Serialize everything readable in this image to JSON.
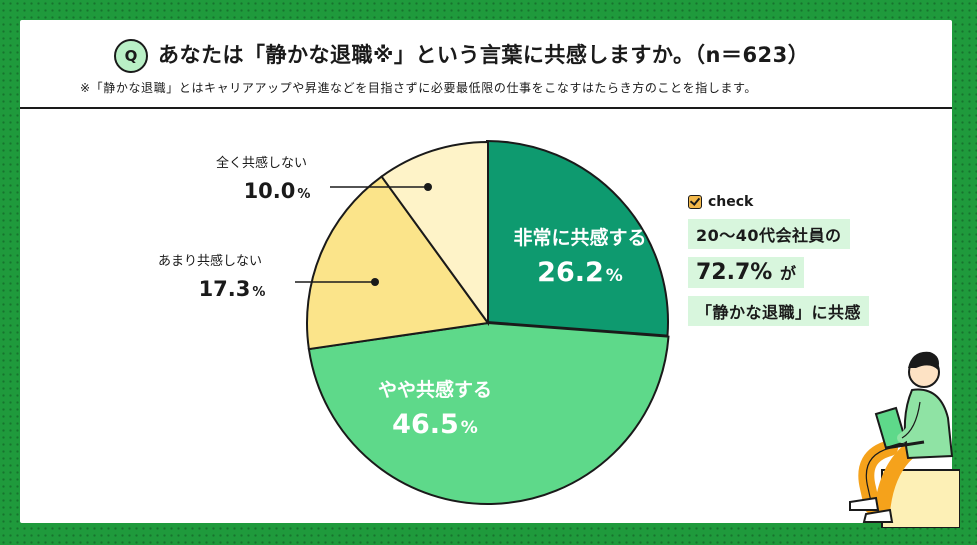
{
  "header": {
    "q_badge": "Q",
    "title": "あなたは「静かな退職※」という言葉に共感しますか。（n＝623）",
    "subtitle": "※「静かな退職」とはキャリアアップや昇進などを目指さずに必要最低限の仕事をこなすはたらき方のことを指します。"
  },
  "chart_data": {
    "type": "pie",
    "start": "12 o'clock, clockwise",
    "slices": [
      {
        "label": "非常に共感する",
        "value": 26.2,
        "display": "26.2",
        "unit": "%",
        "color": "#0e9a6f",
        "label_color": "#ffffff"
      },
      {
        "label": "やや共感する",
        "value": 46.5,
        "display": "46.5",
        "unit": "%",
        "color": "#5ed98a",
        "label_color": "#ffffff"
      },
      {
        "label": "あまり共感しない",
        "value": 17.3,
        "display": "17.3",
        "unit": "%",
        "color": "#fbe48a",
        "label_color": "#1a1a1a"
      },
      {
        "label": "全く共感しない",
        "value": 10.0,
        "display": "10.0",
        "unit": "%",
        "color": "#fef3c8",
        "label_color": "#1a1a1a"
      }
    ]
  },
  "callout": {
    "check_label": "check",
    "line1": "20〜40代会社員の",
    "line2_value": "72.7%",
    "line2_suffix": "が",
    "line3": "「静かな退職」に共感"
  },
  "colors": {
    "frame": "#1f9a3c",
    "highlight": "#d8f6dd",
    "q_badge": "#b9f0c6"
  },
  "icons": [
    "check-icon",
    "person-with-laptop-illustration"
  ]
}
